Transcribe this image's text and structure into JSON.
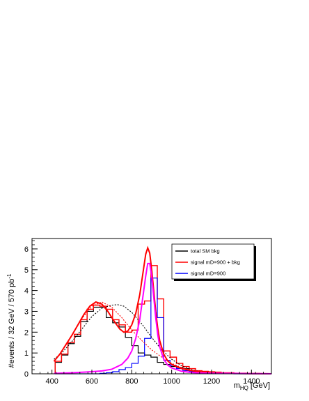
{
  "chart_data": {
    "type": "line",
    "xlabel_main": "m",
    "xlabel_sub": "HQ",
    "xlabel_unit": "[GeV]",
    "ylabel": "#events / 32 GeV / 570 pb",
    "ylabel_sup": "-1",
    "xlim": [
      300,
      1500
    ],
    "ylim": [
      0,
      6.5
    ],
    "x_ticks": [
      400,
      600,
      800,
      1000,
      1200,
      1400
    ],
    "y_ticks": [
      0,
      1,
      2,
      3,
      4,
      5,
      6
    ],
    "bin_edges": [
      416,
      448,
      480,
      512,
      544,
      576,
      608,
      640,
      672,
      704,
      736,
      768,
      800,
      832,
      864,
      896,
      928,
      960,
      992,
      1024,
      1056,
      1088,
      1120,
      1152,
      1184,
      1216,
      1248,
      1280,
      1312,
      1344,
      1376,
      1408,
      1440,
      1472,
      1504
    ],
    "legend": {
      "position": "top-right",
      "entries": [
        {
          "label": "total SM bkg",
          "color": "#000000"
        },
        {
          "label": "signal mD=900 + bkg",
          "color": "#ff0000"
        },
        {
          "label": "signal mD=900",
          "color": "#0000ff"
        }
      ]
    },
    "series": [
      {
        "legend_index": 0,
        "kind": "histogram",
        "color": "#000000",
        "values": [
          0.55,
          0.9,
          1.45,
          1.8,
          2.5,
          3.0,
          3.2,
          3.2,
          2.7,
          2.45,
          2.25,
          1.75,
          1.35,
          1.0,
          0.9,
          0.8,
          0.55,
          0.45,
          0.35,
          0.3,
          0.25,
          0.15,
          0.1,
          0.1,
          0.05,
          0.05,
          0.03,
          0.03,
          0.02,
          0.02,
          0.01,
          0.01,
          0.01,
          0.01
        ]
      },
      {
        "legend_index": 1,
        "kind": "histogram",
        "color": "#ff0000",
        "values": [
          0.6,
          0.95,
          1.5,
          1.9,
          2.6,
          3.1,
          3.3,
          3.25,
          3.1,
          2.6,
          2.35,
          2.0,
          2.1,
          3.35,
          3.5,
          5.2,
          3.6,
          1.1,
          0.8,
          0.5,
          0.35,
          0.25,
          0.15,
          0.12,
          0.1,
          0.08,
          0.05,
          0.05,
          0.03,
          0.03,
          0.02,
          0.02,
          0.01,
          0.01
        ]
      },
      {
        "legend_index": 2,
        "kind": "histogram",
        "color": "#0000ff",
        "values": [
          0,
          0,
          0,
          0,
          0,
          0,
          0,
          0.02,
          0.05,
          0.1,
          0.2,
          0.3,
          0.5,
          0.85,
          1.7,
          4.6,
          2.7,
          0.65,
          0.4,
          0.25,
          0.15,
          0.1,
          0.05,
          0.03,
          0.02,
          0.02,
          0.01,
          0.01,
          0,
          0,
          0,
          0,
          0,
          0
        ]
      },
      {
        "kind": "fit-dotted",
        "color": "#000000",
        "x": [
          410,
          450,
          500,
          550,
          600,
          650,
          700,
          730,
          760,
          800,
          850,
          900,
          950,
          1000,
          1050,
          1100,
          1150,
          1200,
          1250,
          1300,
          1400,
          1500
        ],
        "values": [
          0.7,
          1.0,
          1.55,
          2.15,
          2.75,
          3.15,
          3.3,
          3.32,
          3.25,
          2.95,
          2.4,
          1.75,
          1.15,
          0.7,
          0.38,
          0.2,
          0.1,
          0.05,
          0.02,
          0.01,
          0.0,
          0.0
        ]
      },
      {
        "kind": "fit-dotted",
        "color": "#ff0000",
        "x": [
          410,
          450,
          500,
          550,
          600,
          650,
          700,
          750,
          800,
          850,
          900,
          950,
          1000,
          1050,
          1100,
          1150,
          1200,
          1300,
          1400,
          1500
        ],
        "values": [
          0.6,
          1.1,
          1.85,
          2.65,
          3.25,
          3.45,
          3.2,
          2.7,
          2.1,
          1.6,
          1.15,
          0.8,
          0.5,
          0.3,
          0.18,
          0.1,
          0.05,
          0.02,
          0.01,
          0.0
        ]
      },
      {
        "kind": "fit",
        "color": "#ff0000",
        "x": [
          410,
          440,
          470,
          500,
          530,
          560,
          590,
          620,
          650,
          680,
          710,
          740,
          760,
          780,
          800,
          820,
          840,
          860,
          870,
          880,
          890,
          900,
          910,
          920,
          930,
          940,
          960,
          980,
          1000,
          1050,
          1100,
          1150,
          1200,
          1300,
          1400,
          1500
        ],
        "values": [
          0.6,
          0.95,
          1.4,
          1.85,
          2.35,
          2.85,
          3.25,
          3.45,
          3.35,
          3.0,
          2.55,
          2.15,
          2.0,
          2.05,
          2.35,
          2.9,
          3.8,
          5.1,
          5.75,
          6.05,
          5.8,
          5.0,
          4.0,
          3.0,
          2.2,
          1.6,
          0.95,
          0.62,
          0.45,
          0.25,
          0.15,
          0.08,
          0.05,
          0.02,
          0.01,
          0.0
        ]
      },
      {
        "kind": "fit",
        "color": "#ff00ff",
        "x": [
          410,
          500,
          600,
          650,
          700,
          750,
          780,
          800,
          820,
          840,
          860,
          870,
          880,
          890,
          900,
          910,
          920,
          930,
          940,
          960,
          980,
          1000,
          1050,
          1100,
          1200,
          1300,
          1400,
          1500
        ],
        "values": [
          0.02,
          0.05,
          0.1,
          0.14,
          0.22,
          0.45,
          0.75,
          1.1,
          1.7,
          2.6,
          4.0,
          4.7,
          5.3,
          5.3,
          4.7,
          3.7,
          2.7,
          1.9,
          1.3,
          0.7,
          0.42,
          0.28,
          0.12,
          0.06,
          0.03,
          0.02,
          0.01,
          0.0
        ]
      }
    ]
  }
}
